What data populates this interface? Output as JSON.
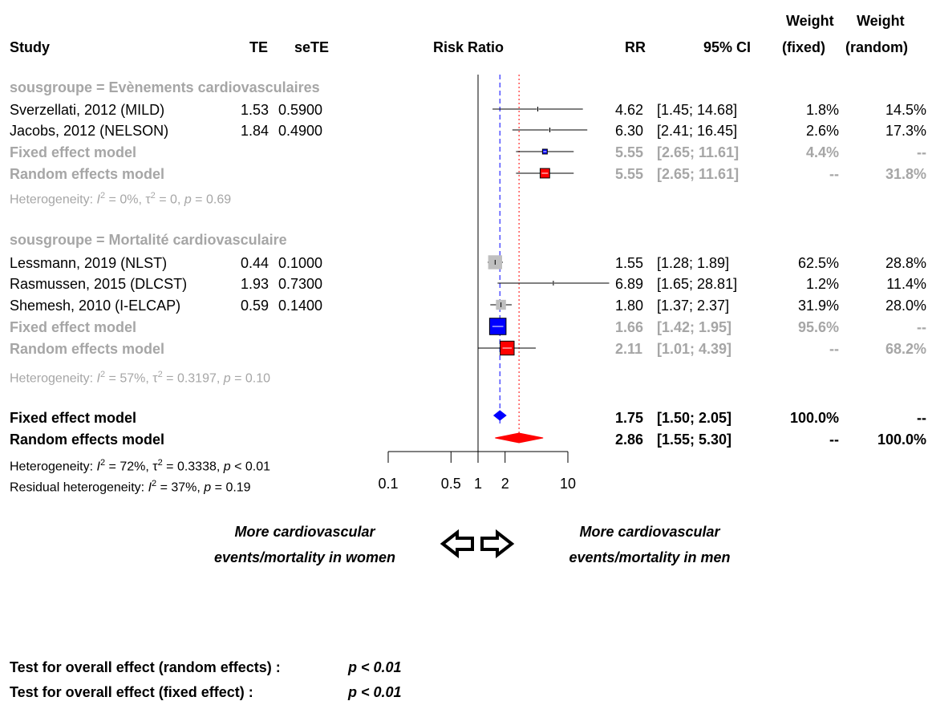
{
  "header": {
    "study": "Study",
    "te": "TE",
    "sete": "seTE",
    "risk_ratio": "Risk Ratio",
    "rr": "RR",
    "ci": "95% CI",
    "weight_fixed_1": "Weight",
    "weight_fixed_2": "(fixed)",
    "weight_random_1": "Weight",
    "weight_random_2": "(random)"
  },
  "groups": [
    {
      "label": "sousgroupe = Evènements cardiovasculaires",
      "het_a": "Heterogeneity: ",
      "het_i": "I",
      "het_b": " = 0%, ",
      "het_tau": "τ",
      "het_c": " = 0, ",
      "het_p": "p",
      "het_d": " = 0.69",
      "studies": [
        {
          "name": "Sverzellati, 2012 (MILD)",
          "te": "1.53",
          "sete": "0.5900",
          "rr": "4.62",
          "ci": "[1.45; 14.68]",
          "wf": "1.8%",
          "wr": "14.5%"
        },
        {
          "name": "Jacobs, 2012 (NELSON)",
          "te": "1.84",
          "sete": "0.4900",
          "rr": "6.30",
          "ci": "[2.41; 16.45]",
          "wf": "2.6%",
          "wr": "17.3%"
        }
      ],
      "fixed": {
        "name": "Fixed effect model",
        "rr": "5.55",
        "ci": "[2.65; 11.61]",
        "wf": "4.4%",
        "wr": "--"
      },
      "random": {
        "name": "Random effects model",
        "rr": "5.55",
        "ci": "[2.65; 11.61]",
        "wf": "--",
        "wr": "31.8%"
      }
    },
    {
      "label": "sousgroupe = Mortalité cardiovasculaire",
      "het_a": "Heterogeneity: ",
      "het_i": "I",
      "het_b": " = 57%, ",
      "het_tau": "τ",
      "het_c": " = 0.3197, ",
      "het_p": "p",
      "het_d": " = 0.10",
      "studies": [
        {
          "name": "Lessmann, 2019 (NLST)",
          "te": "0.44",
          "sete": "0.1000",
          "rr": "1.55",
          "ci": "[1.28;  1.89]",
          "wf": "62.5%",
          "wr": "28.8%"
        },
        {
          "name": "Rasmussen, 2015 (DLCST)",
          "te": "1.93",
          "sete": "0.7300",
          "rr": "6.89",
          "ci": "[1.65; 28.81]",
          "wf": "1.2%",
          "wr": "11.4%"
        },
        {
          "name": "Shemesh, 2010 (I-ELCAP)",
          "te": "0.59",
          "sete": "0.1400",
          "rr": "1.80",
          "ci": "[1.37;  2.37]",
          "wf": "31.9%",
          "wr": "28.0%"
        }
      ],
      "fixed": {
        "name": "Fixed effect model",
        "rr": "1.66",
        "ci": "[1.42;  1.95]",
        "wf": "95.6%",
        "wr": "--"
      },
      "random": {
        "name": "Random effects model",
        "rr": "2.11",
        "ci": "[1.01;  4.39]",
        "wf": "--",
        "wr": "68.2%"
      }
    }
  ],
  "overall": {
    "fixed": {
      "name": "Fixed effect model",
      "rr": "1.75",
      "ci": "[1.50;  2.05]",
      "wf": "100.0%",
      "wr": "--"
    },
    "random": {
      "name": "Random effects model",
      "rr": "2.86",
      "ci": "[1.55;  5.30]",
      "wf": "--",
      "wr": "100.0%"
    },
    "het_a": "Heterogeneity: ",
    "het_i": "I",
    "het_b": " = 72%, ",
    "het_tau": "τ",
    "het_c": " = 0.3338, ",
    "het_p": "p",
    "het_d": " < 0.01",
    "res_a": "Residual heterogeneity: ",
    "res_i": "I",
    "res_b": " = 37%, ",
    "res_p": "p",
    "res_d": " = 0.19"
  },
  "sup2": "2",
  "axis_ticks": [
    "0.1",
    "0.5",
    "1",
    "2",
    "10"
  ],
  "direction": {
    "left_1": "More cardiovascular",
    "left_2": "events/mortality in women",
    "right_1": "More cardiovascular",
    "right_2": "events/mortality in men"
  },
  "tests": {
    "random_label": "Test for overall effect (random effects) :",
    "random_p": "p < 0.01",
    "fixed_label": "Test for overall effect (fixed effect) :",
    "fixed_p": "p < 0.01"
  },
  "colors": {
    "fixed_fill": "#0000ff",
    "random_fill": "#ff0000",
    "grey": "#a6a6a6",
    "study_box": "#bfbfbf"
  },
  "chart_data": {
    "type": "forest",
    "x_scale": "log",
    "xlim": [
      0.1,
      10
    ],
    "ticks": [
      0.1,
      0.5,
      1,
      2,
      10
    ],
    "null_line": 1,
    "fixed_line": 1.75,
    "random_line": 2.86,
    "rows": [
      {
        "kind": "study",
        "rr": 4.62,
        "lo": 1.45,
        "hi": 14.68,
        "weight": 1.8
      },
      {
        "kind": "study",
        "rr": 6.3,
        "lo": 2.41,
        "hi": 16.45,
        "weight": 2.6
      },
      {
        "kind": "fixed_sub",
        "rr": 5.55,
        "lo": 2.65,
        "hi": 11.61,
        "weight": 4.4
      },
      {
        "kind": "random_sub",
        "rr": 5.55,
        "lo": 2.65,
        "hi": 11.61,
        "weight": 31.8
      },
      {
        "kind": "study",
        "rr": 1.55,
        "lo": 1.28,
        "hi": 1.89,
        "weight": 62.5
      },
      {
        "kind": "study",
        "rr": 6.89,
        "lo": 1.65,
        "hi": 28.81,
        "weight": 1.2
      },
      {
        "kind": "study",
        "rr": 1.8,
        "lo": 1.37,
        "hi": 2.37,
        "weight": 31.9
      },
      {
        "kind": "fixed_sub",
        "rr": 1.66,
        "lo": 1.42,
        "hi": 1.95,
        "weight": 95.6
      },
      {
        "kind": "random_sub",
        "rr": 2.11,
        "lo": 1.01,
        "hi": 4.39,
        "weight": 68.2
      },
      {
        "kind": "fixed_overall",
        "rr": 1.75,
        "lo": 1.5,
        "hi": 2.05
      },
      {
        "kind": "random_overall",
        "rr": 2.86,
        "lo": 1.55,
        "hi": 5.3
      }
    ]
  }
}
